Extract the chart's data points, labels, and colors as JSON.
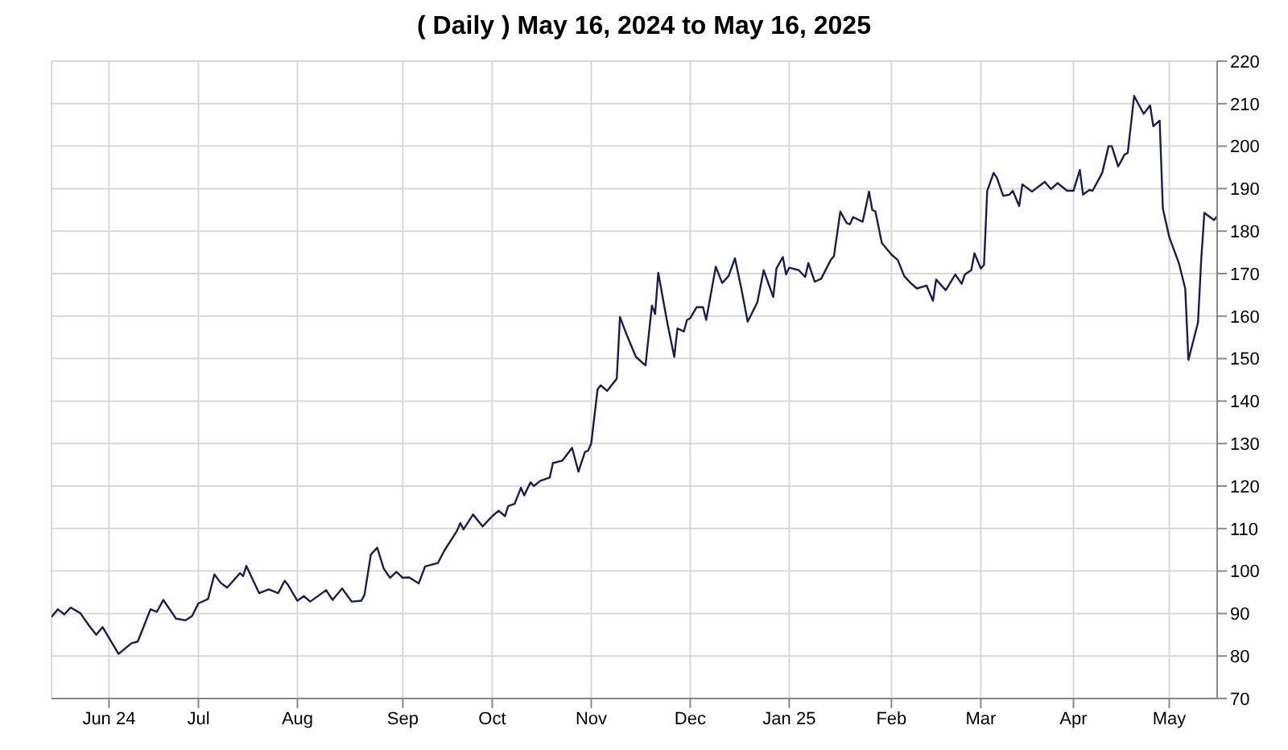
{
  "chart_data": {
    "type": "line",
    "title": "( Daily ) May 16, 2024 to May 16, 2025",
    "x": [
      "2024-05-16",
      "2024-05-18",
      "2024-05-20",
      "2024-05-22",
      "2024-05-25",
      "2024-05-28",
      "2024-05-30",
      "2024-06-01",
      "2024-06-06",
      "2024-06-10",
      "2024-06-12",
      "2024-06-16",
      "2024-06-18",
      "2024-06-20",
      "2024-06-24",
      "2024-06-27",
      "2024-06-29",
      "2024-07-01",
      "2024-07-04",
      "2024-07-06",
      "2024-07-08",
      "2024-07-10",
      "2024-07-14",
      "2024-07-15",
      "2024-07-16",
      "2024-07-20",
      "2024-07-23",
      "2024-07-26",
      "2024-07-28",
      "2024-07-29",
      "2024-08-01",
      "2024-08-03",
      "2024-08-05",
      "2024-08-10",
      "2024-08-12",
      "2024-08-15",
      "2024-08-18",
      "2024-08-21",
      "2024-08-22",
      "2024-08-24",
      "2024-08-26",
      "2024-08-28",
      "2024-08-30",
      "2024-09-01",
      "2024-09-03",
      "2024-09-05",
      "2024-09-08",
      "2024-09-10",
      "2024-09-14",
      "2024-09-16",
      "2024-09-20",
      "2024-09-21",
      "2024-09-22",
      "2024-09-25",
      "2024-09-28",
      "2024-10-01",
      "2024-10-03",
      "2024-10-05",
      "2024-10-06",
      "2024-10-08",
      "2024-10-10",
      "2024-10-11",
      "2024-10-13",
      "2024-10-14",
      "2024-10-16",
      "2024-10-19",
      "2024-10-20",
      "2024-10-23",
      "2024-10-26",
      "2024-10-28",
      "2024-10-30",
      "2024-10-31",
      "2024-11-01",
      "2024-11-03",
      "2024-11-04",
      "2024-11-06",
      "2024-11-09",
      "2024-11-10",
      "2024-11-12",
      "2024-11-15",
      "2024-11-18",
      "2024-11-20",
      "2024-11-21",
      "2024-11-22",
      "2024-11-24",
      "2024-11-25",
      "2024-11-27",
      "2024-11-28",
      "2024-11-30",
      "2024-12-01",
      "2024-12-02",
      "2024-12-04",
      "2024-12-06",
      "2024-12-07",
      "2024-12-10",
      "2024-12-12",
      "2024-12-14",
      "2024-12-16",
      "2024-12-18",
      "2024-12-20",
      "2024-12-23",
      "2024-12-25",
      "2024-12-28",
      "2024-12-29",
      "2024-12-31",
      "2025-01-01",
      "2025-01-02",
      "2025-01-05",
      "2025-01-07",
      "2025-01-08",
      "2025-01-10",
      "2025-01-12",
      "2025-01-15",
      "2025-01-16",
      "2025-01-18",
      "2025-01-20",
      "2025-01-21",
      "2025-01-22",
      "2025-01-25",
      "2025-01-27",
      "2025-01-28",
      "2025-01-29",
      "2025-01-31",
      "2025-02-03",
      "2025-02-05",
      "2025-02-07",
      "2025-02-09",
      "2025-02-11",
      "2025-02-14",
      "2025-02-16",
      "2025-02-17",
      "2025-02-20",
      "2025-02-23",
      "2025-02-25",
      "2025-02-26",
      "2025-02-28",
      "2025-03-01",
      "2025-03-03",
      "2025-03-04",
      "2025-03-05",
      "2025-03-07",
      "2025-03-08",
      "2025-03-10",
      "2025-03-12",
      "2025-03-13",
      "2025-03-15",
      "2025-03-16",
      "2025-03-19",
      "2025-03-23",
      "2025-03-25",
      "2025-03-27",
      "2025-03-30",
      "2025-04-01",
      "2025-04-03",
      "2025-04-04",
      "2025-04-06",
      "2025-04-07",
      "2025-04-10",
      "2025-04-12",
      "2025-04-13",
      "2025-04-15",
      "2025-04-17",
      "2025-04-18",
      "2025-04-20",
      "2025-04-23",
      "2025-04-25",
      "2025-04-26",
      "2025-04-28",
      "2025-04-29",
      "2025-05-01",
      "2025-05-04",
      "2025-05-06",
      "2025-05-07",
      "2025-05-10",
      "2025-05-11",
      "2025-05-12",
      "2025-05-15",
      "2025-05-16"
    ],
    "series": [
      {
        "color": "#1c1c50",
        "values": [
          89.2,
          91.0,
          89.8,
          91.4,
          90.1,
          86.9,
          85.0,
          86.8,
          80.5,
          83.0,
          83.4,
          91.0,
          90.4,
          93.2,
          88.8,
          88.4,
          89.4,
          92.4,
          93.4,
          99.2,
          97.2,
          96.1,
          99.5,
          98.8,
          101.2,
          94.8,
          95.7,
          94.8,
          97.7,
          96.8,
          93.0,
          94.1,
          92.8,
          95.5,
          93.2,
          95.9,
          92.8,
          93.0,
          94.4,
          103.9,
          105.5,
          100.6,
          98.4,
          99.8,
          98.4,
          98.5,
          97.1,
          101.1,
          101.9,
          104.8,
          109.5,
          111.3,
          109.8,
          113.3,
          110.5,
          112.9,
          114.2,
          112.9,
          115.3,
          115.8,
          119.6,
          117.8,
          120.9,
          120.0,
          121.2,
          122.0,
          125.4,
          126.0,
          129.0,
          123.4,
          128.0,
          128.3,
          130.0,
          142.8,
          143.7,
          142.4,
          145.3,
          159.8,
          155.8,
          150.4,
          148.4,
          162.5,
          160.5,
          170.2,
          161.8,
          157.8,
          150.4,
          157.1,
          156.4,
          159.1,
          159.5,
          162.1,
          162.1,
          159.1,
          171.6,
          167.8,
          169.4,
          173.6,
          166.5,
          158.7,
          163.2,
          170.8,
          164.5,
          171.2,
          173.9,
          169.8,
          171.4,
          170.8,
          169.2,
          172.5,
          168.1,
          168.8,
          173.2,
          174.1,
          184.6,
          181.9,
          181.6,
          183.3,
          182.2,
          189.3,
          185.0,
          184.6,
          177.2,
          174.5,
          173.2,
          169.4,
          167.8,
          166.5,
          167.2,
          163.6,
          168.6,
          166.1,
          169.8,
          167.6,
          169.8,
          170.8,
          174.8,
          171.2,
          172.1,
          189.5,
          193.7,
          192.6,
          188.3,
          188.6,
          189.5,
          185.9,
          191.0,
          189.3,
          191.6,
          189.9,
          191.3,
          189.5,
          189.5,
          194.4,
          188.6,
          189.7,
          189.5,
          193.7,
          200.0,
          200.0,
          195.2,
          198.0,
          198.4,
          211.8,
          207.6,
          209.6,
          204.7,
          206.0,
          185.3,
          178.6,
          172.5,
          166.5,
          149.7,
          158.5,
          173.2,
          184.3,
          182.6,
          183.5
        ]
      }
    ],
    "xlim": [
      "2024-05-16",
      "2025-05-16"
    ],
    "xticks": [
      {
        "value": "2024-06-03",
        "label": "Jun 24"
      },
      {
        "value": "2024-07-01",
        "label": "Jul"
      },
      {
        "value": "2024-08-01",
        "label": "Aug"
      },
      {
        "value": "2024-09-03",
        "label": "Sep"
      },
      {
        "value": "2024-10-01",
        "label": "Oct"
      },
      {
        "value": "2024-11-01",
        "label": "Nov"
      },
      {
        "value": "2024-12-02",
        "label": "Dec"
      },
      {
        "value": "2025-01-02",
        "label": "Jan 25"
      },
      {
        "value": "2025-02-03",
        "label": "Feb"
      },
      {
        "value": "2025-03-03",
        "label": "Mar"
      },
      {
        "value": "2025-04-01",
        "label": "Apr"
      },
      {
        "value": "2025-05-01",
        "label": "May"
      }
    ],
    "ylim": [
      70,
      220
    ],
    "yticks": [
      70,
      80,
      90,
      100,
      110,
      120,
      130,
      140,
      150,
      160,
      170,
      180,
      190,
      200,
      210,
      220
    ],
    "grid": true,
    "legend": false,
    "marker": "none",
    "line_style": "solid"
  }
}
